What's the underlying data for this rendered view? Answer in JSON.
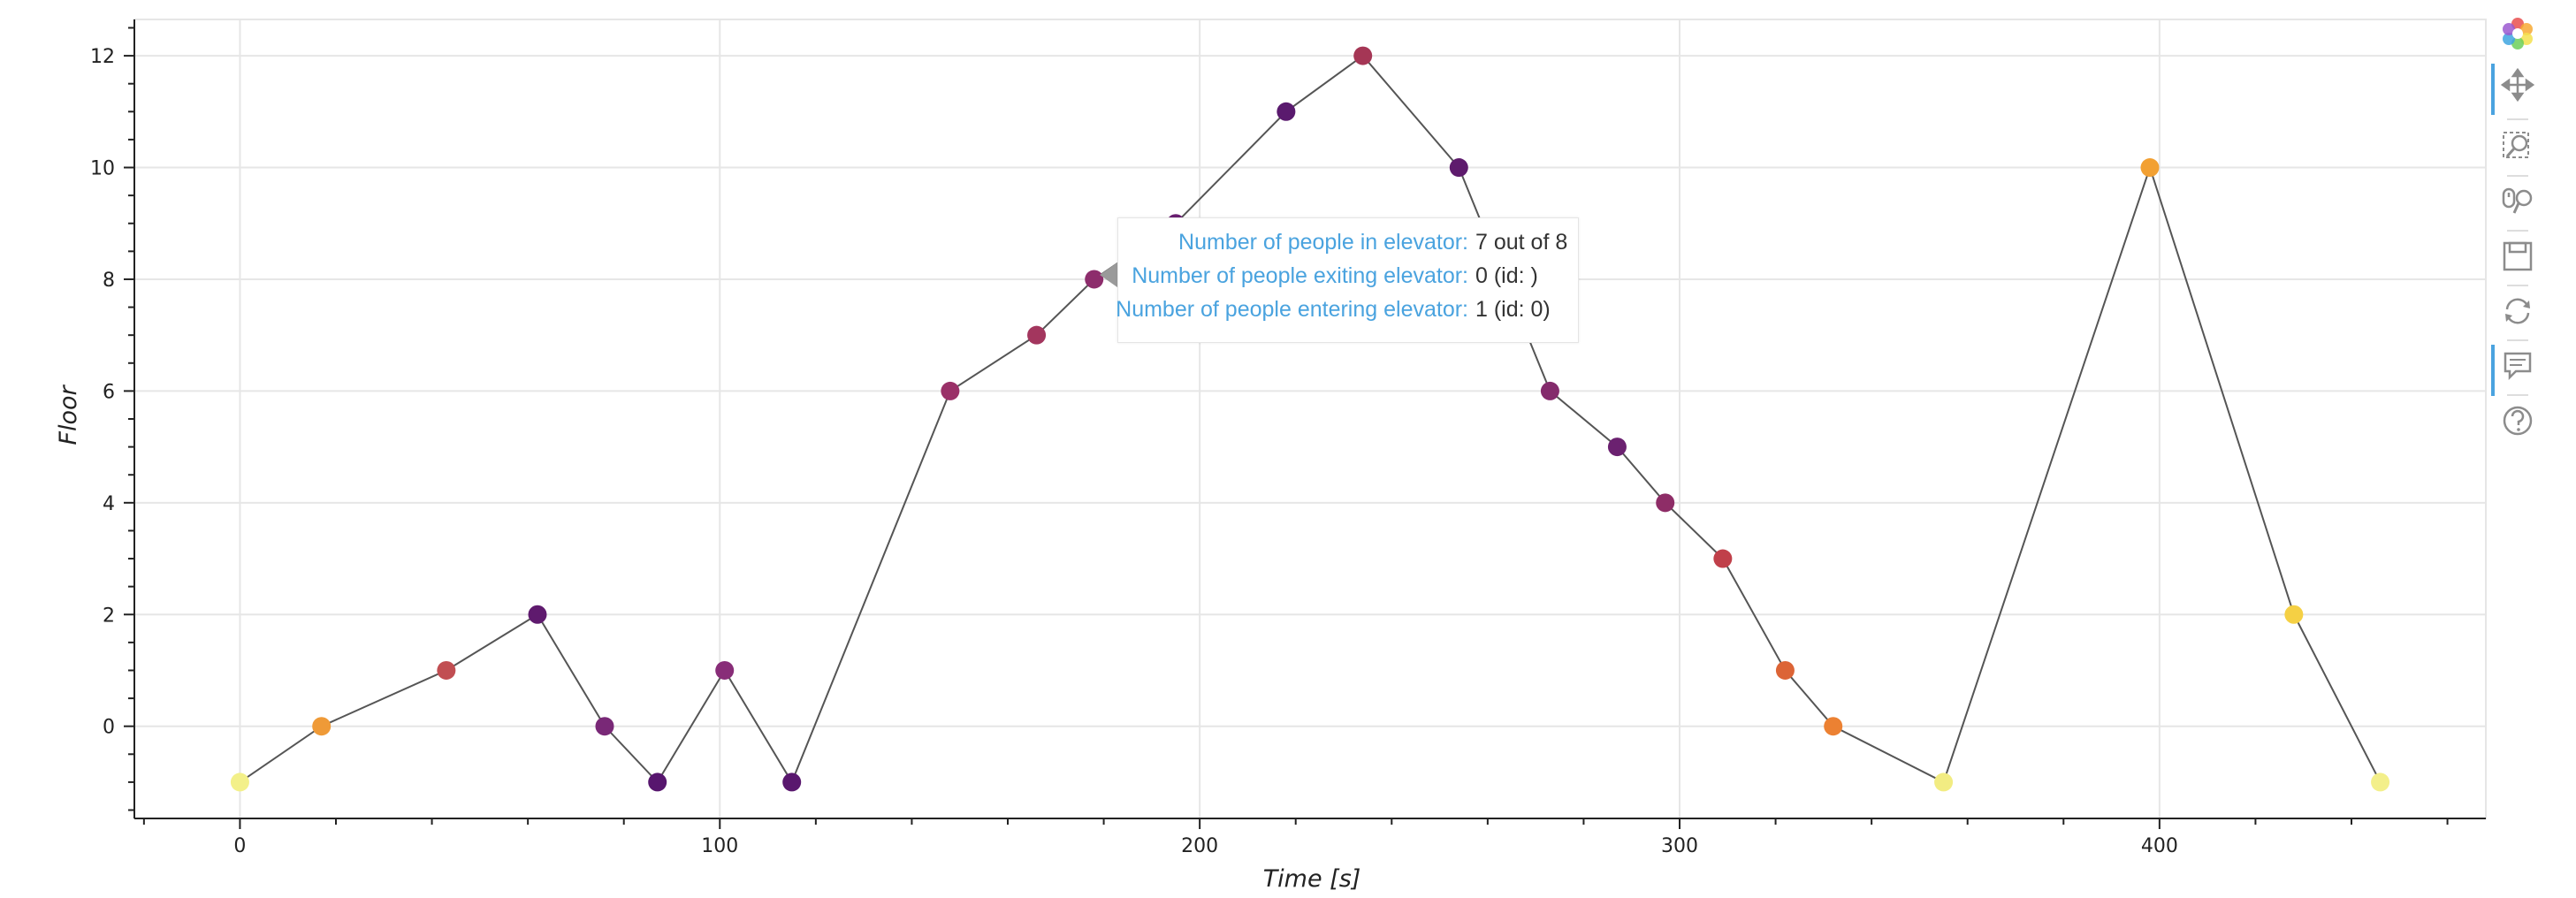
{
  "chart_data": {
    "type": "line",
    "xlabel": "Time [s]",
    "ylabel": "Floor",
    "xlim": [
      -22,
      468
    ],
    "ylim": [
      -1.65,
      12.65
    ],
    "x_ticks": [
      0,
      100,
      200,
      300,
      400
    ],
    "y_ticks": [
      0,
      2,
      4,
      6,
      8,
      10,
      12
    ],
    "grid": true,
    "series": [
      {
        "line_color": "#555555",
        "x": [
          0,
          17,
          43,
          62,
          76,
          87,
          101,
          115,
          148,
          166,
          178,
          195,
          218,
          234,
          254,
          273,
          287,
          297,
          309,
          322,
          332,
          355,
          398,
          428,
          446
        ],
        "y": [
          -1,
          0,
          1,
          2,
          0,
          -1,
          1,
          -1,
          6,
          7,
          8,
          9,
          11,
          12,
          10,
          6,
          5,
          4,
          3,
          1,
          0,
          -1,
          10,
          2,
          -1
        ],
        "colors": [
          "#f3f089",
          "#ef9a37",
          "#c14e52",
          "#5f1a6e",
          "#792877",
          "#57166e",
          "#882d78",
          "#59176e",
          "#9a3168",
          "#a3365e",
          "#8d2d6c",
          "#6a1f71",
          "#5a1a6e",
          "#a53655",
          "#5e1b6d",
          "#842b6c",
          "#6b2170",
          "#8e2d67",
          "#c0404a",
          "#dc6436",
          "#ec8132",
          "#f2ec82",
          "#f2a032",
          "#f5d044",
          "#f3ef8a"
        ]
      }
    ]
  },
  "tooltip": {
    "rows": [
      {
        "label": "Number of people in elevator:",
        "value": "7 out of 8"
      },
      {
        "label": "Number of people exiting elevator:",
        "value": "0 (id: )"
      },
      {
        "label": "Number of people entering elevator:",
        "value": "1 (id: 0)"
      }
    ]
  },
  "toolbar": {
    "tools": [
      {
        "name": "bokeh-logo-icon",
        "active": false
      },
      {
        "name": "pan-tool-icon",
        "active": true
      },
      {
        "name": "box-zoom-tool-icon",
        "active": false
      },
      {
        "name": "wheel-zoom-tool-icon",
        "active": false
      },
      {
        "name": "save-tool-icon",
        "active": false
      },
      {
        "name": "reset-tool-icon",
        "active": false
      },
      {
        "name": "hover-tool-icon",
        "active": true
      },
      {
        "name": "help-tool-icon",
        "active": false
      }
    ]
  },
  "colors": {
    "grid": "#e6e6e6",
    "axis": "#222222",
    "tooltip_label": "#4aa3df",
    "toolbar_icon": "#8c8c8c",
    "toolbar_active": "#4aa3df"
  }
}
